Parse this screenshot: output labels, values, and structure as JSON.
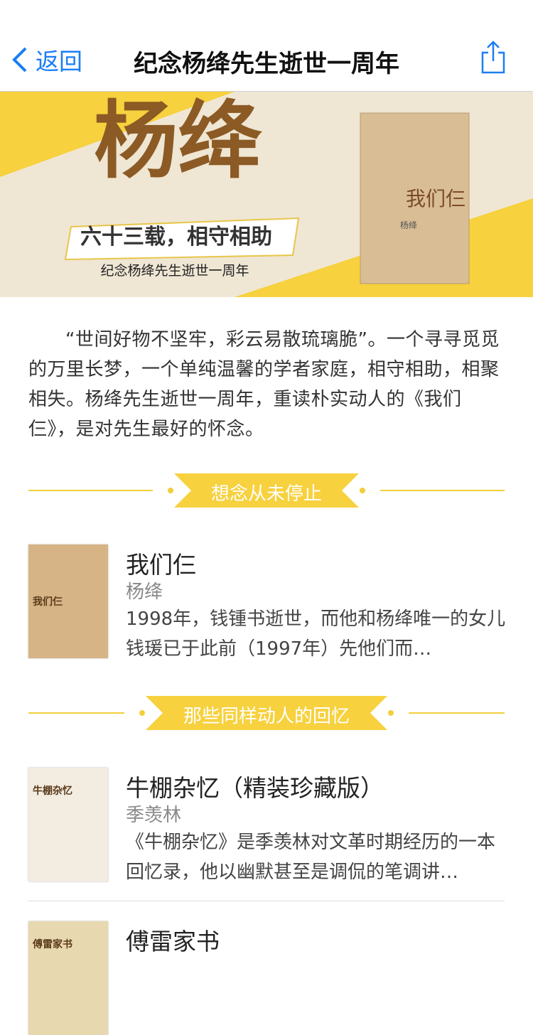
{
  "nav": {
    "back": "返回",
    "title": "纪念杨绛先生逝世一周年"
  },
  "banner": {
    "headline": "杨绛",
    "ribbon": "六十三载，相守相助",
    "subtitle": "纪念杨绛先生逝世一周年",
    "cover_title": "我们仨",
    "cover_author": "杨绛"
  },
  "intro": "“世间好物不坚牢，彩云易散琉璃脆”。一个寻寻觅觅的万里长梦，一个单纯温馨的学者家庭，相守相助，相聚相失。杨绛先生逝世一周年，重读朴实动人的《我们仨》，是对先生最好的怀念。",
  "sections": [
    {
      "heading": "想念从未停止",
      "books": [
        {
          "title": "我们仨",
          "author": "杨绛",
          "cover_label": "我们仨",
          "description": "1998年，钱锺书逝世，而他和杨绛唯一的女儿钱瑗已于此前（1997年）先他们而…"
        }
      ]
    },
    {
      "heading": "那些同样动人的回忆",
      "books": [
        {
          "title": "牛棚杂忆（精装珍藏版）",
          "author": "季羡林",
          "cover_label": "牛棚杂忆",
          "description": "《牛棚杂忆》是季羡林对文革时期经历的一本回忆录，他以幽默甚至是调侃的笔调讲…"
        },
        {
          "title": "傅雷家书",
          "cover_label": "傅雷家书"
        }
      ]
    }
  ]
}
